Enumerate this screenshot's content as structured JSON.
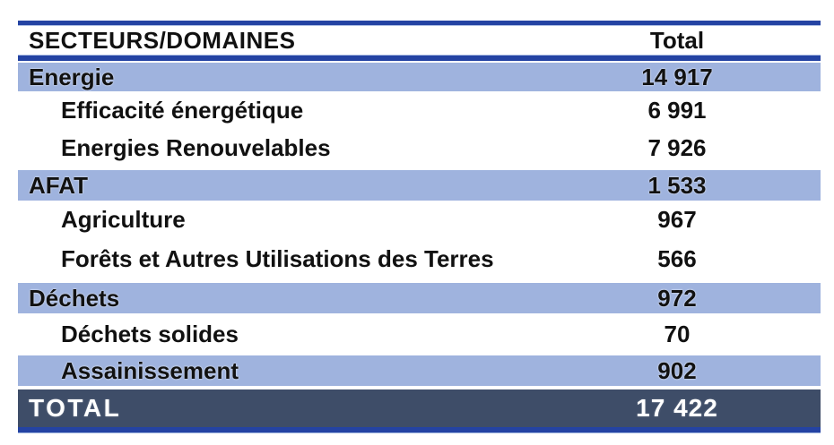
{
  "table": {
    "header": {
      "col_sector": "SECTEURS/DOMAINES",
      "col_total": "Total"
    },
    "rows": [
      {
        "label": "Energie",
        "value": "14 917",
        "type": "section"
      },
      {
        "label": "Efficacité énergétique",
        "value": "6 991",
        "type": "sub"
      },
      {
        "label": "Energies Renouvelables",
        "value": "7 926",
        "type": "sub"
      },
      {
        "label": "AFAT",
        "value": "1 533",
        "type": "section"
      },
      {
        "label": "Agriculture",
        "value": "967",
        "type": "sub"
      },
      {
        "label": "Forêts et Autres Utilisations des Terres",
        "value": "566",
        "type": "sub"
      },
      {
        "label": "Déchets",
        "value": "972",
        "type": "section"
      },
      {
        "label": "Déchets solides",
        "value": "70",
        "type": "sub"
      },
      {
        "label": "Assainissement",
        "value": "902",
        "type": "section-sub"
      },
      {
        "label": "TOTAL",
        "value": "17 422",
        "type": "total"
      }
    ],
    "colors": {
      "highlight_row_bg": "#9fb3de",
      "total_row_bg": "#3e4d68",
      "rule_blue": "#2443a3",
      "text": "#111111",
      "total_text": "#ffffff"
    }
  },
  "chart_data": {
    "type": "table",
    "title": "",
    "columns": [
      "SECTEURS/DOMAINES",
      "Total"
    ],
    "sections": [
      {
        "name": "Energie",
        "total": 14917,
        "sub": [
          {
            "name": "Efficacité énergétique",
            "value": 6991
          },
          {
            "name": "Energies Renouvelables",
            "value": 7926
          }
        ]
      },
      {
        "name": "AFAT",
        "total": 1533,
        "sub": [
          {
            "name": "Agriculture",
            "value": 967
          },
          {
            "name": "Forêts et Autres Utilisations des Terres",
            "value": 566
          }
        ]
      },
      {
        "name": "Déchets",
        "total": 972,
        "sub": [
          {
            "name": "Déchets solides",
            "value": 70
          },
          {
            "name": "Assainissement",
            "value": 902
          }
        ]
      }
    ],
    "grand_total": 17422
  }
}
